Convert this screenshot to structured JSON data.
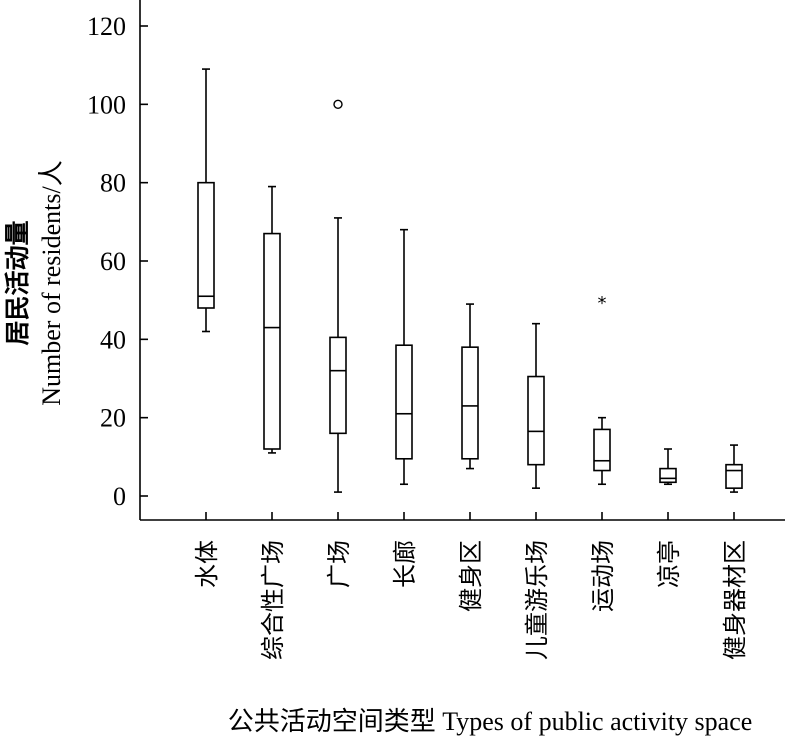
{
  "chart_data": {
    "type": "box",
    "ylabel_cn": "居民活动量",
    "ylabel_en": "Number of residents/人",
    "xlabel": "公共活动空间类型 Types of public activity space",
    "ylim": [
      0,
      120
    ],
    "yticks": [
      0,
      20,
      40,
      60,
      80,
      100,
      120
    ],
    "grid": false,
    "categories": [
      "水体",
      "综合性广场",
      "广场",
      "长廊",
      "健身区",
      "儿童游乐场",
      "运动场",
      "凉亭",
      "健身器材区"
    ],
    "boxes": [
      {
        "category": "水体",
        "min": 42,
        "q1": 48,
        "median": 51,
        "q3": 80,
        "max": 109,
        "outliers": []
      },
      {
        "category": "综合性广场",
        "min": 11,
        "q1": 12,
        "median": 43,
        "q3": 67,
        "max": 79,
        "outliers": []
      },
      {
        "category": "广场",
        "min": 1,
        "q1": 16,
        "median": 32,
        "q3": 40.5,
        "max": 71,
        "outliers": [
          {
            "value": 100,
            "marker": "circle"
          }
        ]
      },
      {
        "category": "长廊",
        "min": 3,
        "q1": 9.5,
        "median": 21,
        "q3": 38.5,
        "max": 68,
        "outliers": []
      },
      {
        "category": "健身区",
        "min": 7,
        "q1": 9.5,
        "median": 23,
        "q3": 38,
        "max": 49,
        "outliers": []
      },
      {
        "category": "儿童游乐场",
        "min": 2,
        "q1": 8,
        "median": 16.5,
        "q3": 30.5,
        "max": 44,
        "outliers": []
      },
      {
        "category": "运动场",
        "min": 3,
        "q1": 6.5,
        "median": 9,
        "q3": 17,
        "max": 20,
        "outliers": [
          {
            "value": 50,
            "marker": "star"
          }
        ]
      },
      {
        "category": "凉亭",
        "min": 3,
        "q1": 3.5,
        "median": 4.5,
        "q3": 7,
        "max": 12,
        "outliers": []
      },
      {
        "category": "健身器材区",
        "min": 1,
        "q1": 2,
        "median": 6.5,
        "q3": 8,
        "max": 13,
        "outliers": []
      }
    ]
  }
}
